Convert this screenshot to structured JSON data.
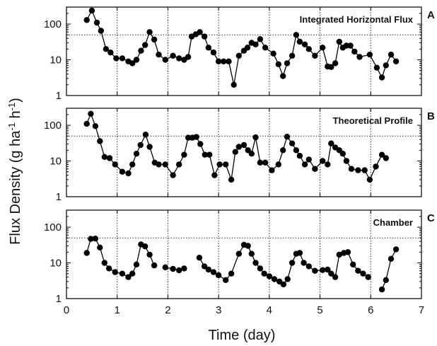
{
  "figure": {
    "xlabel": "Time (day)",
    "ylabel_main": "Flux Density (g ha",
    "ylabel_sup1": "-1",
    "ylabel_mid": " h",
    "ylabel_sup2": "-1",
    "ylabel_end": ")"
  },
  "colors": {
    "marker": "#000000",
    "line": "#000000",
    "grid": "#000000",
    "axis": "#000000"
  },
  "chart_data": [
    {
      "type": "line",
      "panel_letter": "A",
      "title": "Integrated Horizontal Flux",
      "xlim": [
        0,
        7
      ],
      "ylim": [
        1,
        300
      ],
      "yscale": "log",
      "x_ticks": [
        0,
        1,
        2,
        3,
        4,
        5,
        6,
        7
      ],
      "y_ticks": [
        1,
        10,
        100
      ],
      "reference_line_y": 50,
      "grid": "vertical dotted at integer days",
      "x": [
        0.4,
        0.5,
        0.6,
        0.68,
        0.78,
        0.87,
        0.98,
        1.1,
        1.22,
        1.3,
        1.38,
        1.47,
        1.55,
        1.64,
        1.73,
        1.82,
        1.95,
        2.1,
        2.22,
        2.32,
        2.4,
        2.47,
        2.55,
        2.63,
        2.72,
        2.8,
        2.9,
        3.0,
        3.1,
        3.2,
        3.3,
        3.4,
        3.5,
        3.57,
        3.65,
        3.73,
        3.82,
        3.92,
        4.08,
        4.18,
        4.27,
        4.35,
        4.45,
        4.53,
        4.6,
        4.7,
        4.78,
        4.9,
        5.05,
        5.15,
        5.22,
        5.3,
        5.38,
        5.45,
        5.52,
        5.6,
        5.68,
        5.78,
        5.98,
        6.12,
        6.22,
        6.3,
        6.4,
        6.5
      ],
      "y": [
        130,
        240,
        110,
        65,
        20,
        16,
        11,
        11,
        9,
        8,
        10,
        18,
        26,
        60,
        37,
        14,
        10,
        13,
        11,
        10,
        12,
        45,
        52,
        60,
        45,
        22,
        16,
        9,
        9,
        9,
        2,
        13,
        18,
        22,
        30,
        27,
        38,
        22,
        15,
        7.5,
        3.5,
        8,
        13,
        50,
        32,
        27,
        20,
        13,
        22,
        6.5,
        6.3,
        8,
        32,
        22,
        25,
        25,
        17,
        12,
        14,
        6,
        3.2,
        7,
        14,
        9
      ]
    },
    {
      "type": "line",
      "panel_letter": "B",
      "title": "Theoretical Profile",
      "xlim": [
        0,
        7
      ],
      "ylim": [
        1,
        300
      ],
      "yscale": "log",
      "x_ticks": [
        0,
        1,
        2,
        3,
        4,
        5,
        6,
        7
      ],
      "y_ticks": [
        1,
        10,
        100
      ],
      "reference_line_y": 50,
      "grid": "vertical dotted at integer days",
      "x": [
        0.4,
        0.48,
        0.57,
        0.66,
        0.75,
        0.85,
        0.96,
        1.1,
        1.22,
        1.3,
        1.38,
        1.46,
        1.56,
        1.64,
        1.74,
        1.82,
        1.95,
        2.1,
        2.22,
        2.32,
        2.4,
        2.48,
        2.56,
        2.64,
        2.73,
        2.82,
        2.92,
        3.02,
        3.14,
        3.25,
        3.33,
        3.4,
        3.5,
        3.58,
        3.65,
        3.73,
        3.82,
        3.92,
        4.05,
        4.18,
        4.27,
        4.35,
        4.45,
        4.53,
        4.6,
        4.7,
        4.78,
        4.9,
        5.05,
        5.15,
        5.22,
        5.3,
        5.38,
        5.45,
        5.52,
        5.62,
        5.75,
        5.88,
        5.98,
        6.1,
        6.22,
        6.3,
        6.4,
        6.5
      ],
      "y": [
        110,
        210,
        95,
        36,
        13,
        12,
        8,
        5,
        4.5,
        8,
        16,
        28,
        55,
        25,
        9,
        8,
        8,
        4,
        8,
        15,
        45,
        45,
        47,
        30,
        15,
        15,
        4,
        8,
        8,
        3,
        18,
        25,
        28,
        20,
        16,
        46,
        9,
        9,
        5.5,
        8,
        20,
        48,
        31,
        20,
        14,
        8,
        11,
        6,
        10,
        8,
        31,
        24,
        20,
        16,
        10,
        6,
        5.5,
        5.5,
        3,
        7,
        15,
        12,
        0,
        0
      ]
    },
    {
      "type": "line",
      "panel_letter": "C",
      "title": "Chamber",
      "xlim": [
        0,
        7
      ],
      "ylim": [
        1,
        300
      ],
      "yscale": "log",
      "x_ticks": [
        0,
        1,
        2,
        3,
        4,
        5,
        6,
        7
      ],
      "y_ticks": [
        1,
        10,
        100
      ],
      "reference_line_y": 50,
      "grid": "vertical dotted at integer days",
      "segments": [
        {
          "x": [
            0.4,
            0.48,
            0.57,
            0.66,
            0.75,
            0.84,
            0.96,
            1.1,
            1.22,
            1.3,
            1.38,
            1.47,
            1.55,
            1.64,
            1.73
          ],
          "y": [
            19,
            47,
            48,
            27,
            10,
            7,
            5.5,
            5,
            4,
            5,
            9,
            33,
            29,
            17,
            8.5
          ]
        },
        {
          "x": [
            1.95,
            2.1,
            2.22,
            2.32
          ],
          "y": [
            7.5,
            6.8,
            6.2,
            7
          ]
        },
        {
          "x": [
            2.62,
            2.72,
            2.8,
            2.9,
            3.0,
            3.14,
            3.25,
            3.4,
            3.5,
            3.58,
            3.65,
            3.73,
            3.82,
            3.9,
            4.0,
            4.1,
            4.2,
            4.28,
            4.36,
            4.45,
            4.53,
            4.6,
            4.68,
            4.78,
            4.9,
            5.05,
            5.15,
            5.22,
            5.3,
            5.38,
            5.47,
            5.55,
            5.65,
            5.75,
            5.85,
            5.95
          ],
          "y": [
            14,
            8,
            6.5,
            5.5,
            4.5,
            3.3,
            5,
            18,
            32,
            30,
            18,
            10,
            7,
            5,
            4.2,
            3.5,
            3,
            2.5,
            3.5,
            10,
            18,
            19,
            10,
            8,
            6,
            6.3,
            6.5,
            5,
            4,
            17,
            19,
            20,
            9,
            6,
            5,
            4
          ]
        },
        {
          "x": [
            6.22,
            6.3,
            6.4,
            6.5
          ],
          "y": [
            1.8,
            3.3,
            13,
            24
          ]
        }
      ]
    }
  ]
}
